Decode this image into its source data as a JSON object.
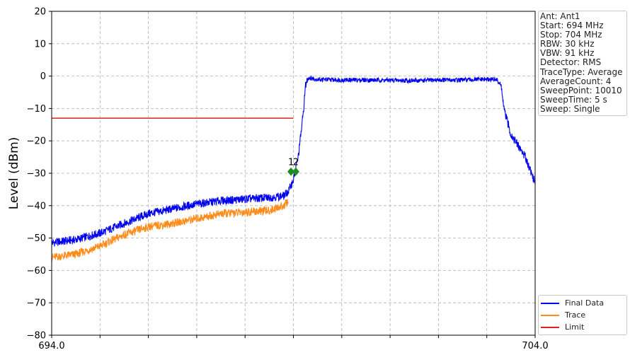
{
  "chart_data": {
    "type": "line",
    "xlabel": "",
    "ylabel": "Level (dBm)",
    "xlim": [
      694.0,
      704.0
    ],
    "ylim": [
      -80,
      20
    ],
    "x_tick_labels": [
      "694.0",
      "704.0"
    ],
    "y_ticks": [
      20,
      10,
      0,
      -10,
      -20,
      -30,
      -40,
      -50,
      -60,
      -70,
      -80
    ],
    "y_tick_labels": [
      "20",
      "10",
      "0",
      "−10",
      "−20",
      "−30",
      "−40",
      "−50",
      "−60",
      "−70",
      "−80"
    ],
    "grid": true,
    "legend_position": "bottom-right",
    "series": [
      {
        "name": "Final Data",
        "color": "#0000ee",
        "x": [
          694.0,
          694.5,
          695.0,
          695.5,
          696.0,
          696.5,
          697.0,
          697.5,
          698.0,
          698.5,
          698.8,
          698.9,
          699.0,
          699.1,
          699.2,
          699.25,
          699.3,
          699.5,
          700.0,
          700.5,
          701.0,
          701.5,
          702.0,
          702.5,
          703.0,
          703.2,
          703.3,
          703.35,
          703.5,
          703.8,
          704.0
        ],
        "y": [
          -51.5,
          -50.5,
          -48.5,
          -45.5,
          -42.5,
          -41,
          -39.5,
          -38.5,
          -38,
          -37.5,
          -37,
          -35.5,
          -32,
          -25,
          -12,
          -3,
          -0.5,
          -1,
          -1.2,
          -1.2,
          -1.3,
          -1.4,
          -1.2,
          -1.2,
          -1.0,
          -1.0,
          -3,
          -10,
          -18,
          -25,
          -33
        ]
      },
      {
        "name": "Trace",
        "color": "#ff8c1a",
        "x": [
          694.0,
          694.5,
          695.0,
          695.5,
          696.0,
          696.5,
          697.0,
          697.5,
          698.0,
          698.5,
          698.8,
          698.9
        ],
        "y": [
          -56,
          -55,
          -52.5,
          -49,
          -46.5,
          -45.5,
          -44,
          -42.5,
          -42,
          -41.5,
          -40,
          -38.5
        ]
      },
      {
        "name": "Limit",
        "color": "#e02020",
        "x": [
          694.0,
          699.0
        ],
        "y": [
          -13,
          -13
        ]
      }
    ],
    "markers": [
      {
        "label": "1",
        "x": 698.95,
        "y": -29.5,
        "color": "#1e8c1e"
      },
      {
        "label": "2",
        "x": 699.05,
        "y": -29.5,
        "color": "#1e8c1e"
      }
    ]
  },
  "info_box": [
    "Ant: Ant1",
    "Start: 694 MHz",
    "Stop: 704 MHz",
    "RBW: 30 kHz",
    "VBW: 91 kHz",
    "Detector: RMS",
    "TraceType: Average",
    "AverageCount: 4",
    "SweepPoint: 10010",
    "SweepTime: 5 s",
    "Sweep: Single"
  ],
  "legend": [
    {
      "label": "Final Data",
      "color": "#0000ee"
    },
    {
      "label": "Trace",
      "color": "#ff8c1a"
    },
    {
      "label": "Limit",
      "color": "#e02020"
    }
  ]
}
